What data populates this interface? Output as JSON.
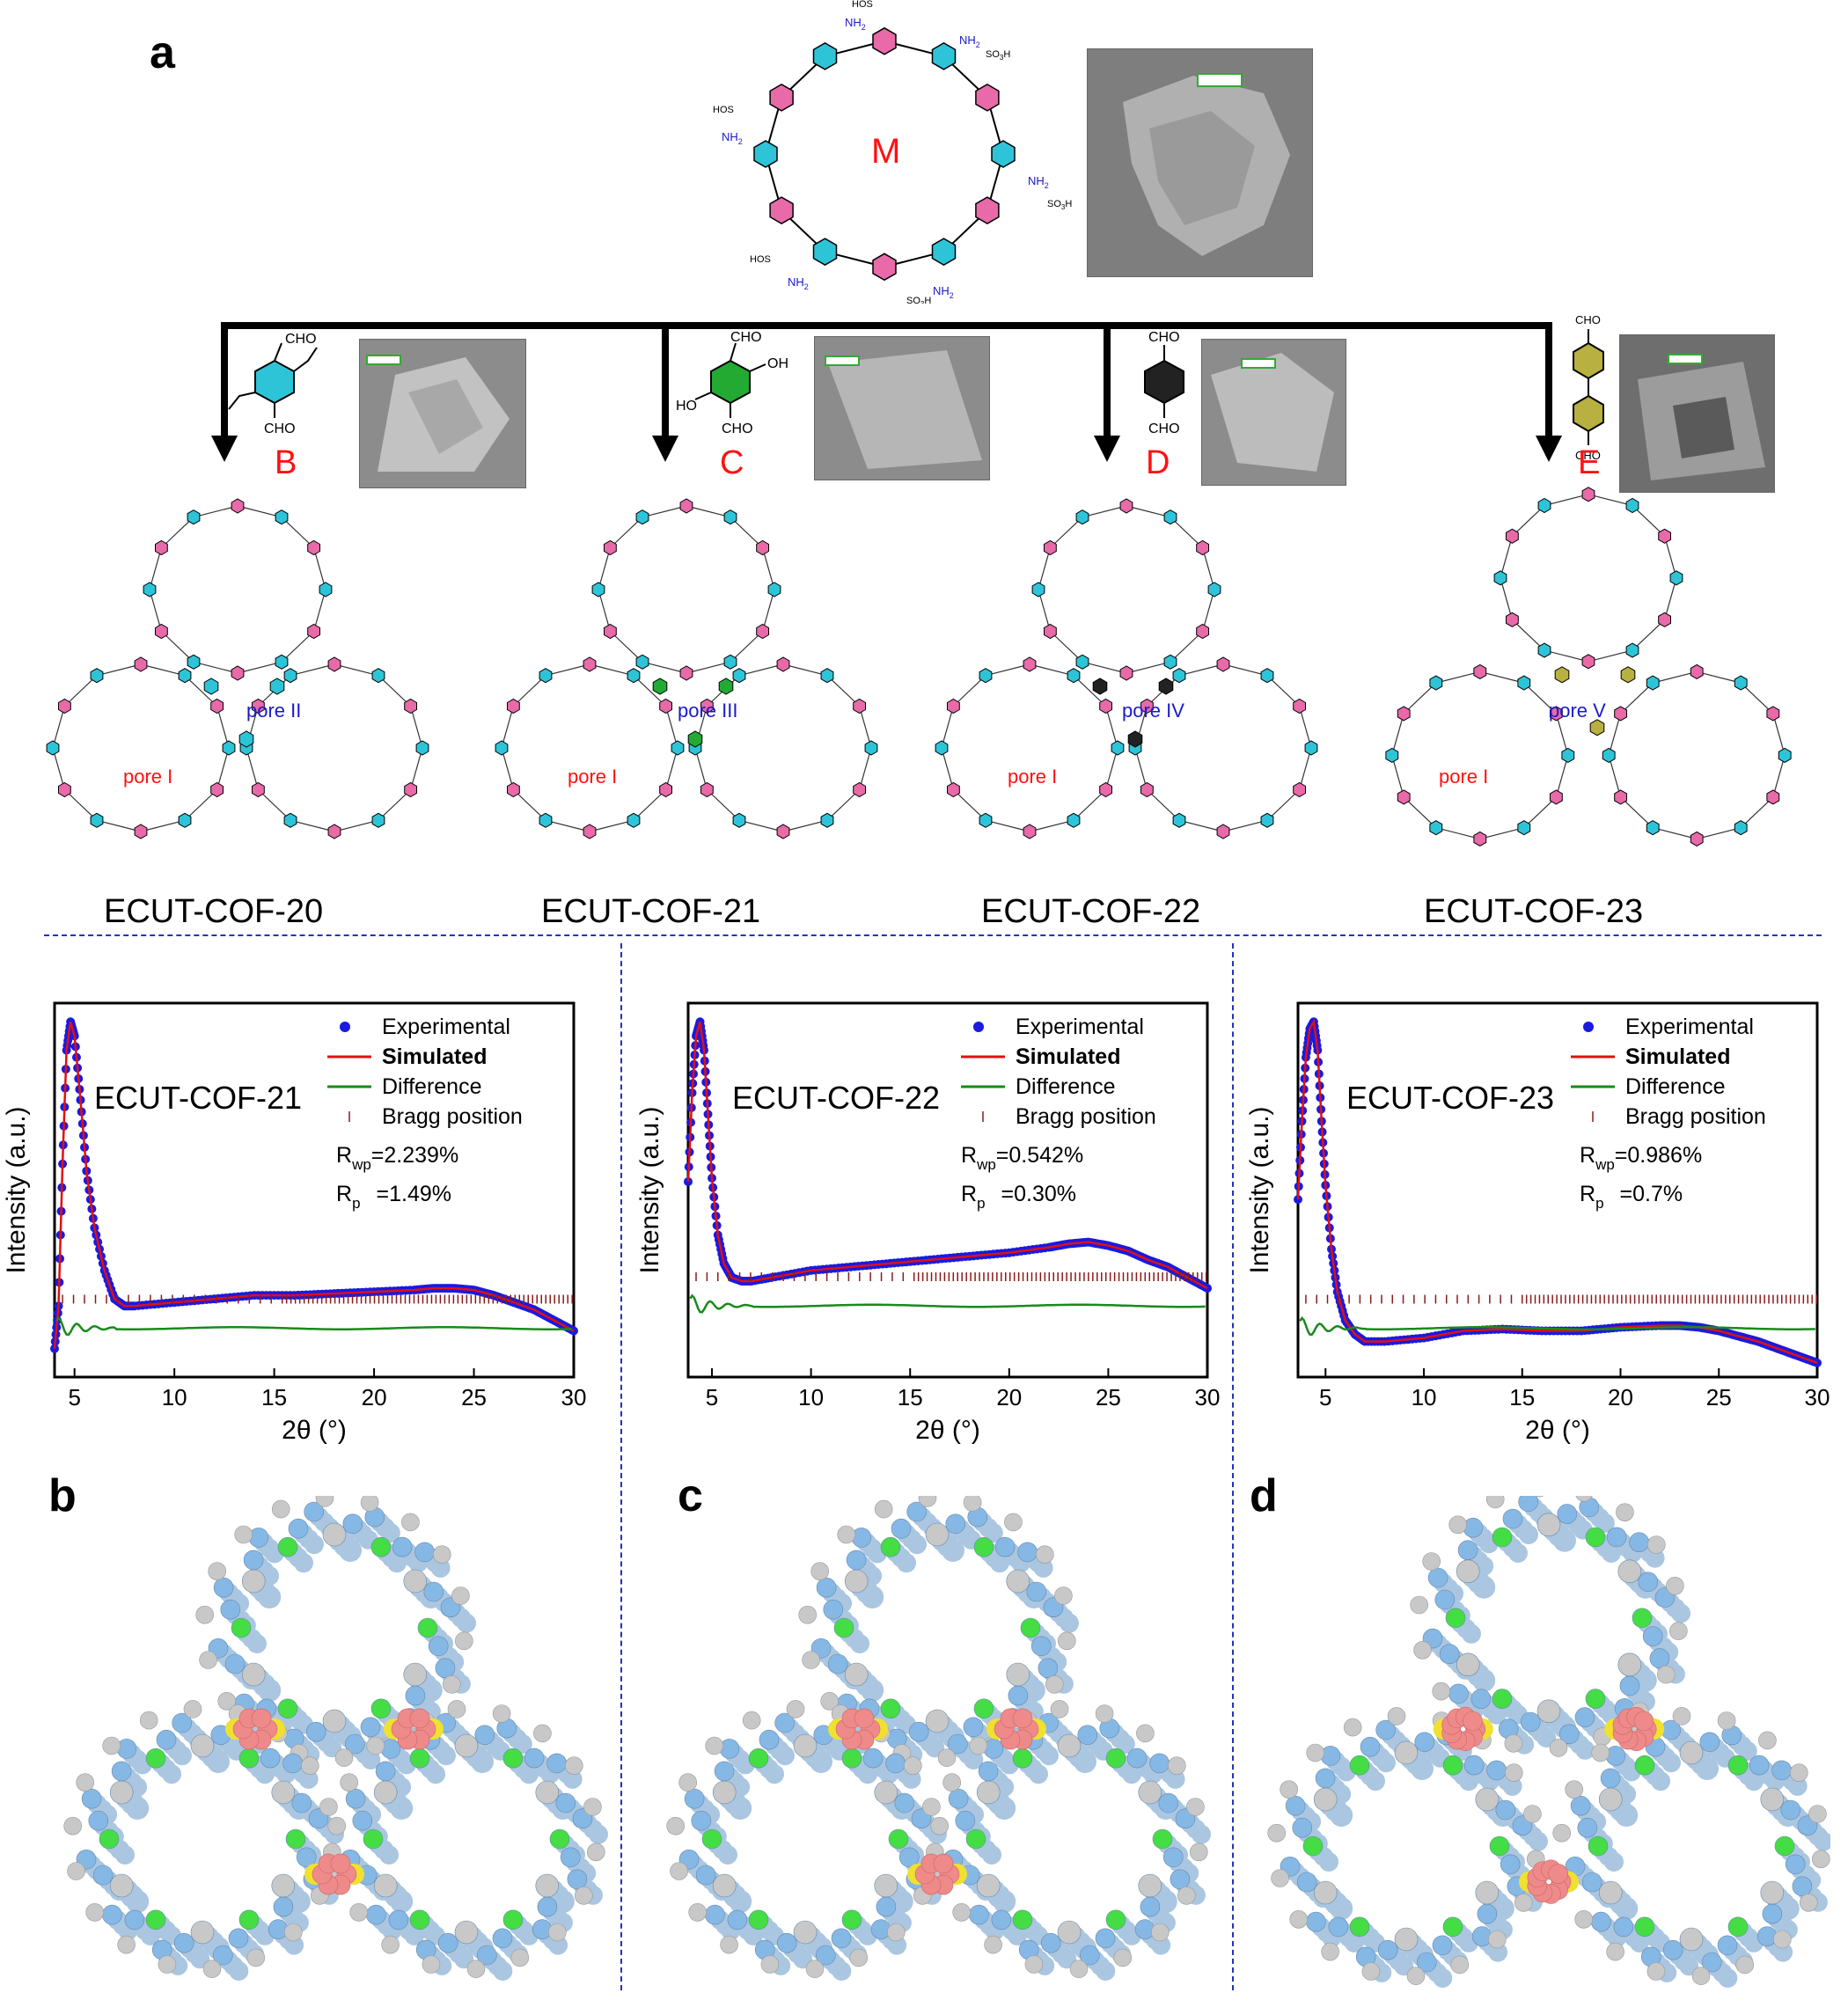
{
  "panel_a": {
    "letter": "a",
    "monomer": {
      "label": "M",
      "groups": {
        "amine": "NH",
        "amine_sub": "2",
        "sulfonic": "SO",
        "sulfonic_sub": "3",
        "sulfonic_h": "H",
        "hso": "HO",
        "hso_s": "S"
      }
    },
    "linkers": [
      {
        "label": "B",
        "groups": [
          "CHO",
          "CHO"
        ]
      },
      {
        "label": "C",
        "groups": [
          "CHO",
          "OH",
          "HO",
          "CHO"
        ]
      },
      {
        "label": "D",
        "groups": [
          "CHO",
          "CHO"
        ]
      },
      {
        "label": "E",
        "groups": [
          "CHO",
          "CHO"
        ]
      }
    ],
    "frameworks": [
      {
        "name": "ECUT-COF-20",
        "pore_a": "pore I",
        "pore_b": "pore II"
      },
      {
        "name": "ECUT-COF-21",
        "pore_a": "pore I",
        "pore_b": "pore III"
      },
      {
        "name": "ECUT-COF-22",
        "pore_a": "pore I",
        "pore_b": "pore IV"
      },
      {
        "name": "ECUT-COF-23",
        "pore_a": "pore I",
        "pore_b": "pore V"
      }
    ],
    "colors": {
      "pink_ring": "#e86aa8",
      "cyan_ring": "#2ec4d8",
      "green_ring": "#22aa33",
      "black_ring": "#222222",
      "olive_ring": "#b8b040",
      "label_red": "#ff1010",
      "label_blue": "#1a1acc"
    }
  },
  "pxrd": [
    {
      "chart_data": {
        "type": "line",
        "title": "ECUT-COF-21",
        "xlabel": "2θ (°)",
        "ylabel": "Intensity (a.u.)",
        "xlim": [
          4,
          30
        ],
        "xticks": [
          5,
          10,
          15,
          20,
          25,
          30
        ],
        "legend": [
          "Experimental",
          "Simulated",
          "Difference",
          "Bragg position"
        ],
        "legend_position": "top-right",
        "stats": {
          "rwp_label": "R",
          "rwp_sub": "wp",
          "rwp_value": "=2.239%",
          "rp_label": "R",
          "rp_sub": "p",
          "rp_value": "=1.49%"
        },
        "series": [
          {
            "name": "Experimental",
            "x": [
              4.0,
              4.2,
              4.4,
              4.6,
              4.8,
              5.0,
              5.3,
              5.6,
              6.0,
              6.5,
              7.0,
              7.5,
              8,
              10,
              12,
              14,
              16,
              18,
              20,
              22,
              23,
              24,
              25,
              26,
              27,
              28,
              29,
              30
            ],
            "y": [
              8,
              20,
              60,
              92,
              100,
              96,
              78,
              58,
              42,
              30,
              22,
              20,
              20,
              21,
              22,
              23,
              23,
              23.5,
              24,
              24.5,
              25,
              25,
              24.5,
              23,
              21,
              19,
              16,
              13
            ]
          },
          {
            "name": "Difference"
          }
        ]
      }
    },
    {
      "chart_data": {
        "type": "line",
        "title": "ECUT-COF-22",
        "xlabel": "2θ (°)",
        "ylabel": "Intensity (a.u.)",
        "xlim": [
          3.8,
          30
        ],
        "xticks": [
          5,
          10,
          15,
          20,
          25,
          30
        ],
        "legend": [
          "Experimental",
          "Simulated",
          "Difference",
          "Bragg position"
        ],
        "legend_position": "top-right",
        "stats": {
          "rwp_label": "R",
          "rwp_sub": "wp",
          "rwp_value": "=0.542%",
          "rp_label": "R",
          "rp_sub": "p",
          "rp_value": "=0.30%"
        },
        "series": [
          {
            "name": "Experimental",
            "x": [
              3.8,
              4.0,
              4.2,
              4.4,
              4.6,
              4.8,
              5.0,
              5.3,
              5.6,
              6.0,
              6.5,
              7,
              8,
              10,
              12,
              14,
              16,
              18,
              20,
              22,
              23,
              24,
              25,
              26,
              27,
              28,
              29,
              30
            ],
            "y": [
              55,
              80,
              96,
              100,
              92,
              74,
              56,
              40,
              32,
              28,
              27,
              27,
              28,
              30,
              31,
              32,
              33,
              34,
              35,
              36.5,
              37.5,
              38,
              37,
              35.5,
              33,
              31,
              28,
              25
            ]
          },
          {
            "name": "Difference"
          }
        ]
      }
    },
    {
      "chart_data": {
        "type": "line",
        "title": "ECUT-COF-23",
        "xlabel": "2θ (°)",
        "ylabel": "Intensity (a.u.)",
        "xlim": [
          3.6,
          30
        ],
        "xticks": [
          5,
          10,
          15,
          20,
          25,
          30
        ],
        "legend": [
          "Experimental",
          "Simulated",
          "Difference",
          "Bragg position"
        ],
        "legend_position": "top-right",
        "stats": {
          "rwp_label": "R",
          "rwp_sub": "wp",
          "rwp_value": "=0.986%",
          "rp_label": "R",
          "rp_sub": "p",
          "rp_value": "=0.7%"
        },
        "series": [
          {
            "name": "Experimental",
            "x": [
              3.6,
              3.8,
              4.0,
              4.2,
              4.4,
              4.6,
              4.8,
              5.0,
              5.3,
              5.6,
              6,
              6.5,
              7,
              8,
              10,
              12,
              14,
              16,
              18,
              20,
              22,
              23,
              24,
              25,
              26,
              27,
              28,
              29,
              30
            ],
            "y": [
              50,
              72,
              90,
              98,
              100,
              92,
              72,
              54,
              36,
              24,
              16,
              12,
              10,
              10,
              11,
              13,
              13.5,
              13,
              13,
              14,
              14.5,
              14.5,
              14,
              13,
              11.5,
              10,
              8,
              6,
              4
            ]
          },
          {
            "name": "Difference"
          }
        ]
      }
    }
  ],
  "models": [
    {
      "letter": "b"
    },
    {
      "letter": "c"
    },
    {
      "letter": "d"
    }
  ],
  "colors": {
    "experimental": "#1a1ae0",
    "simulated": "#e01010",
    "difference": "#1a8a1a",
    "bragg": "#8b1a1a",
    "model_blue": "#86b8e6",
    "model_green": "#44dd44",
    "model_gray": "#c8c8c8",
    "model_pink": "#ee8a8a",
    "model_yellow": "#f0e030"
  }
}
